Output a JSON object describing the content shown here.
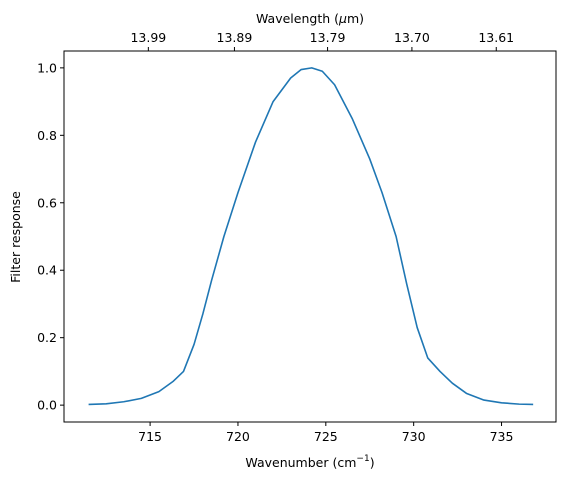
{
  "chart_data": {
    "type": "line",
    "xlabel": "Wavenumber (cm",
    "xlabel_sup": "−1",
    "xlabel_end": ")",
    "ylabel": "Filter response",
    "top_xlabel": "Wavelength (",
    "top_xlabel_mu": "μ",
    "top_xlabel_end": "m)",
    "xlim": [
      710.1,
      738.1
    ],
    "ylim": [
      -0.05,
      1.05
    ],
    "xticks": [
      715,
      720,
      725,
      730,
      735
    ],
    "xtick_labels": [
      "715",
      "720",
      "725",
      "730",
      "735"
    ],
    "yticks": [
      0.0,
      0.2,
      0.4,
      0.6,
      0.8,
      1.0
    ],
    "ytick_labels": [
      "0.0",
      "0.2",
      "0.4",
      "0.6",
      "0.8",
      "1.0"
    ],
    "top_xticks": [
      714.9,
      719.8,
      725.1,
      729.9,
      734.7
    ],
    "top_xtick_labels": [
      "13.99",
      "13.89",
      "13.79",
      "13.70",
      "13.61"
    ],
    "series": [
      {
        "color": "#1f77b4",
        "x": [
          711.5,
          712.5,
          713.5,
          714.5,
          715.5,
          716.3,
          716.9,
          717.5,
          718.0,
          718.5,
          719.2,
          720.0,
          721.0,
          722.0,
          723.0,
          723.6,
          724.2,
          724.8,
          725.5,
          726.5,
          727.5,
          728.2,
          729.0,
          729.6,
          730.2,
          730.8,
          731.5,
          732.2,
          733.0,
          734.0,
          735.0,
          736.0,
          736.8
        ],
        "y": [
          0.002,
          0.004,
          0.01,
          0.02,
          0.04,
          0.07,
          0.1,
          0.18,
          0.27,
          0.37,
          0.5,
          0.63,
          0.78,
          0.9,
          0.97,
          0.995,
          1.0,
          0.99,
          0.95,
          0.85,
          0.73,
          0.63,
          0.5,
          0.36,
          0.23,
          0.14,
          0.1,
          0.065,
          0.035,
          0.015,
          0.007,
          0.003,
          0.002
        ]
      }
    ]
  }
}
